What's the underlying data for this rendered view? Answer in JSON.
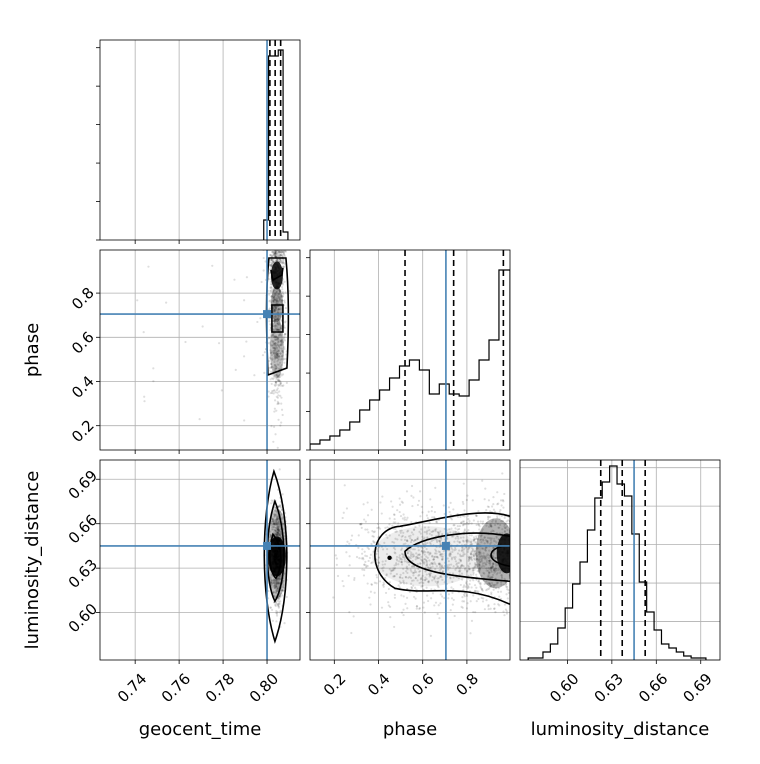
{
  "chart_data": {
    "type": "corner",
    "parameters": [
      "geocent_time",
      "phase",
      "luminosity_distance"
    ],
    "truth": {
      "geocent_time": 0.8,
      "phase": 0.705,
      "luminosity_distance": 0.645
    },
    "ranges": {
      "geocent_time": [
        0.724,
        0.815
      ],
      "phase": [
        0.09,
        0.995
      ],
      "luminosity_distance": [
        0.568,
        0.703
      ]
    },
    "ticks": {
      "geocent_time": {
        "values": [
          0.74,
          0.76,
          0.78,
          0.8
        ],
        "labels": [
          "0.74",
          "0.76",
          "0.78",
          "0.80"
        ]
      },
      "phase": {
        "values": [
          0.2,
          0.4,
          0.6,
          0.8
        ],
        "labels": [
          "0.2",
          "0.4",
          "0.6",
          "0.8"
        ]
      },
      "luminosity_distance": {
        "values": [
          0.6,
          0.63,
          0.66,
          0.69
        ],
        "labels": [
          "0.60",
          "0.63",
          "0.66",
          "0.69"
        ]
      }
    },
    "quantiles": {
      "geocent_time": [
        0.8013,
        0.8037,
        0.8062
      ],
      "phase": [
        0.52,
        0.74,
        0.965
      ],
      "luminosity_distance": [
        0.6225,
        0.637,
        0.6525
      ]
    },
    "histograms": {
      "geocent_time": {
        "edges": [
          0.7985,
          0.8007,
          0.8029,
          0.8051,
          0.8073,
          0.8095
        ],
        "counts": [
          0.1,
          0.92,
          0.92,
          0.95,
          0.04
        ]
      },
      "phase": {
        "edges": [
          0.09,
          0.135,
          0.18,
          0.225,
          0.27,
          0.315,
          0.36,
          0.405,
          0.45,
          0.495,
          0.54,
          0.585,
          0.63,
          0.675,
          0.72,
          0.765,
          0.81,
          0.855,
          0.9,
          0.945,
          0.995
        ],
        "counts": [
          0.03,
          0.05,
          0.07,
          0.1,
          0.14,
          0.2,
          0.25,
          0.3,
          0.36,
          0.42,
          0.45,
          0.4,
          0.28,
          0.33,
          0.28,
          0.27,
          0.35,
          0.45,
          0.55,
          0.9
        ]
      },
      "luminosity_distance": {
        "edges": [
          0.5735,
          0.5785,
          0.5835,
          0.5885,
          0.5935,
          0.5985,
          0.6035,
          0.6085,
          0.6135,
          0.6185,
          0.6235,
          0.6285,
          0.6335,
          0.6385,
          0.6435,
          0.6485,
          0.6535,
          0.6585,
          0.6635,
          0.6685,
          0.6735,
          0.6785,
          0.6835,
          0.6885,
          0.6935
        ],
        "counts": [
          0.01,
          0.01,
          0.04,
          0.08,
          0.16,
          0.26,
          0.38,
          0.49,
          0.65,
          0.81,
          0.89,
          0.97,
          0.88,
          0.82,
          0.63,
          0.39,
          0.24,
          0.15,
          0.08,
          0.06,
          0.04,
          0.02,
          0.01,
          0.01
        ]
      }
    },
    "grid": true,
    "truth_color": "#4682b4",
    "contour_color": "#000000"
  }
}
